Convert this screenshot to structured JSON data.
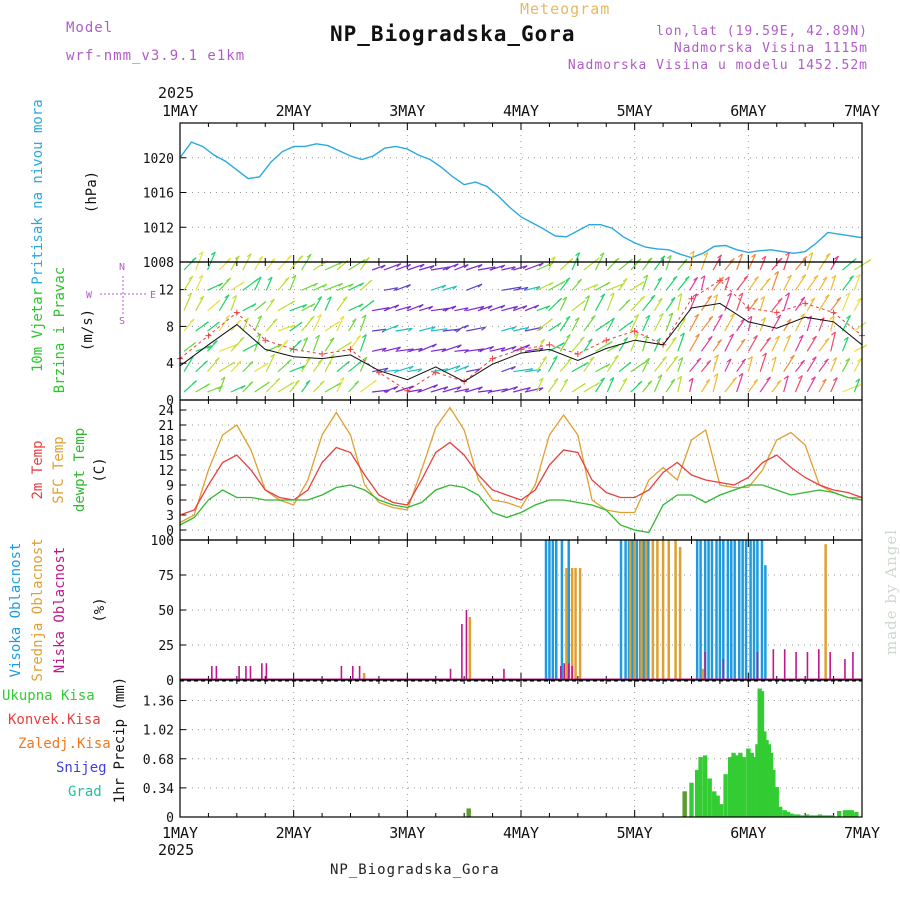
{
  "header": {
    "model_label": "Model",
    "model_name": "wrf-nmm_v3.9.1 e1km",
    "title": "NP_Biogradska_Gora",
    "subtitle": "Meteogram",
    "coords": "lon,lat (19.59E, 42.89N)",
    "elevation": "Nadmorska Visina 1115m",
    "model_elevation": "Nadmorska Visina u modelu 1452.52m",
    "footer": "NP_Biogradska_Gora",
    "signature": "made by Angel"
  },
  "colors": {
    "pressure": "#29a9e0",
    "wind_title": "#2cc52c",
    "temp2m": "#e84040",
    "sfc": "#e0a030",
    "dewpt": "#30b830",
    "cloud_high": "#1e9be0",
    "cloud_mid": "#e0a030",
    "cloud_low": "#c0188c",
    "precip_total": "#33cc33",
    "precip_conv": "#e84040",
    "precip_frz": "#f07820",
    "precip_snow": "#4040e0",
    "precip_hail": "#20c0a0"
  },
  "chart_data": [
    {
      "type": "line",
      "panel": "pressure",
      "ylabel": "Pritisak na nivou mora",
      "unit": "(hPa)",
      "ylim": [
        1008,
        1024
      ],
      "yticks": [
        1008,
        1012,
        1016,
        1020
      ],
      "grid": true,
      "year": "2025",
      "day_labels": [
        "1MAY",
        "2MAY",
        "3MAY",
        "4MAY",
        "5MAY",
        "6MAY",
        "7MAY"
      ],
      "x": [
        0,
        0.1,
        0.2,
        0.3,
        0.4,
        0.5,
        0.6,
        0.7,
        0.8,
        0.9,
        1.0,
        1.1,
        1.2,
        1.3,
        1.4,
        1.5,
        1.6,
        1.7,
        1.8,
        1.9,
        2.0,
        2.1,
        2.2,
        2.3,
        2.4,
        2.5,
        2.6,
        2.7,
        2.8,
        2.9,
        3.0,
        3.1,
        3.2,
        3.3,
        3.4,
        3.5,
        3.6,
        3.7,
        3.8,
        3.9,
        4.0,
        4.1,
        4.2,
        4.3,
        4.4,
        4.5,
        4.6,
        4.7,
        4.8,
        4.9,
        5.0,
        5.1,
        5.2,
        5.3,
        5.4,
        5.5,
        5.6,
        5.7,
        5.8,
        5.9,
        6.0
      ],
      "series": [
        {
          "values": [
            1020.0,
            1021.8,
            1021.3,
            1020.3,
            1019.6,
            1018.6,
            1017.6,
            1017.8,
            1019.5,
            1020.7,
            1021.3,
            1021.3,
            1021.6,
            1021.4,
            1020.8,
            1020.2,
            1019.8,
            1020.2,
            1021.1,
            1021.3,
            1021.0,
            1020.3,
            1019.8,
            1018.9,
            1017.8,
            1016.9,
            1017.2,
            1016.7,
            1015.6,
            1014.3,
            1013.2,
            1012.5,
            1011.8,
            1011.0,
            1010.9,
            1011.6,
            1012.3,
            1012.3,
            1011.9,
            1010.9,
            1010.2,
            1009.7,
            1009.5,
            1009.4,
            1008.9,
            1008.5,
            1009.0,
            1009.8,
            1009.9,
            1009.4,
            1009.1,
            1009.3,
            1009.4,
            1009.2,
            1009.0,
            1009.2,
            1010.2,
            1011.4,
            1011.2,
            1011.0,
            1010.8
          ]
        }
      ]
    },
    {
      "type": "line",
      "panel": "wind",
      "ylabel": "10m Vjetar",
      "ylabel2": "Brzina i Pravac",
      "unit": "(m/s)",
      "compass": {
        "w": "W",
        "e": "E",
        "n": "N",
        "s": "S"
      },
      "ylim": [
        0,
        15
      ],
      "yticks": [
        0,
        4,
        8,
        12
      ],
      "grid": true,
      "x": [
        0,
        0.25,
        0.5,
        0.75,
        1.0,
        1.25,
        1.5,
        1.75,
        2.0,
        2.25,
        2.5,
        2.75,
        3.0,
        3.25,
        3.5,
        3.75,
        4.0,
        4.25,
        4.5,
        4.75,
        5.0,
        5.25,
        5.5,
        5.75,
        6.0
      ],
      "series": [
        {
          "values": [
            3.7,
            6.0,
            8.2,
            5.5,
            4.7,
            4.5,
            4.9,
            3.2,
            2.2,
            3.6,
            2.0,
            3.9,
            5.1,
            5.5,
            4.3,
            5.6,
            6.5,
            6.0,
            10.0,
            10.5,
            8.5,
            7.8,
            9.0,
            8.5,
            6.0
          ]
        },
        {
          "values": [
            4.5,
            7.0,
            9.5,
            6.5,
            5.5,
            5.0,
            5.5,
            3.0,
            1.0,
            3.0,
            2.0,
            4.5,
            5.5,
            6.0,
            5.0,
            6.5,
            7.5,
            6.0,
            11.0,
            13.0,
            10.0,
            9.5,
            10.5,
            9.5,
            7.0
          ]
        }
      ]
    },
    {
      "type": "line",
      "panel": "temperature",
      "ylabel": "2m Temp",
      "ylabel2": "SFC Temp",
      "ylabel3": "dewpt Temp",
      "unit": "(C)",
      "ylim": [
        -2,
        26
      ],
      "yticks": [
        0,
        3,
        6,
        9,
        12,
        15,
        18,
        21,
        24
      ],
      "grid": true,
      "x": [
        0,
        0.125,
        0.25,
        0.375,
        0.5,
        0.625,
        0.75,
        0.875,
        1.0,
        1.125,
        1.25,
        1.375,
        1.5,
        1.625,
        1.75,
        1.875,
        2.0,
        2.125,
        2.25,
        2.375,
        2.5,
        2.625,
        2.75,
        2.875,
        3.0,
        3.125,
        3.25,
        3.375,
        3.5,
        3.625,
        3.75,
        3.875,
        4.0,
        4.125,
        4.25,
        4.375,
        4.5,
        4.625,
        4.75,
        4.875,
        5.0,
        5.125,
        5.25,
        5.375,
        5.5,
        5.625,
        5.75,
        5.875,
        6.0
      ],
      "series": [
        {
          "values": [
            3.0,
            4.0,
            9.0,
            13.5,
            15.0,
            12.0,
            8.0,
            6.5,
            6.0,
            8.0,
            13.5,
            16.5,
            15.5,
            11.0,
            7.0,
            5.5,
            5.0,
            10.0,
            15.5,
            17.5,
            15.0,
            11.0,
            8.0,
            7.0,
            6.0,
            8.0,
            13.0,
            16.0,
            15.5,
            10.0,
            7.5,
            6.5,
            6.5,
            8.0,
            11.5,
            13.5,
            11.0,
            10.0,
            9.5,
            9.0,
            10.5,
            13.5,
            15.0,
            12.5,
            10.5,
            9.0,
            8.0,
            7.5,
            6.5
          ]
        },
        {
          "values": [
            1.5,
            3.0,
            12.0,
            19.0,
            21.0,
            16.0,
            8.0,
            6.0,
            5.0,
            10.0,
            19.0,
            23.5,
            19.0,
            9.0,
            5.5,
            4.5,
            4.0,
            12.0,
            20.5,
            24.5,
            20.0,
            10.0,
            6.0,
            5.5,
            4.5,
            9.0,
            19.0,
            23.0,
            19.0,
            6.0,
            4.0,
            3.5,
            3.5,
            10.0,
            12.5,
            10.0,
            18.0,
            20.0,
            9.0,
            8.5,
            8.5,
            12.0,
            18.0,
            19.5,
            17.0,
            9.0,
            7.5,
            6.5,
            6.5
          ]
        },
        {
          "values": [
            1.0,
            2.5,
            6.0,
            8.0,
            6.5,
            6.5,
            6.0,
            6.0,
            6.0,
            6.0,
            7.0,
            8.5,
            9.0,
            8.0,
            6.0,
            5.0,
            4.5,
            5.5,
            8.0,
            9.0,
            8.5,
            7.0,
            3.5,
            2.5,
            3.5,
            5.0,
            6.0,
            6.0,
            5.5,
            5.0,
            4.0,
            1.0,
            0.0,
            -0.5,
            5.0,
            7.0,
            7.0,
            5.5,
            7.0,
            8.0,
            9.0,
            9.0,
            8.0,
            7.0,
            7.5,
            8.0,
            7.5,
            6.5,
            6.0
          ]
        }
      ]
    },
    {
      "type": "bar",
      "panel": "clouds",
      "ylabel": "Visoka Oblacnost",
      "ylabel2": "Srednja Oblacnost",
      "ylabel3": "Niska Oblacnost",
      "unit": "(%)",
      "ylim": [
        0,
        100
      ],
      "yticks": [
        0,
        25,
        50,
        75,
        100
      ],
      "grid": true,
      "series": [
        {
          "x": [
            3.22,
            3.25,
            3.28,
            3.31,
            3.36,
            3.42,
            3.88,
            3.92,
            3.95,
            3.98,
            4.02,
            4.05,
            4.08,
            4.12,
            4.55,
            4.58,
            4.62,
            4.65,
            4.68,
            4.72,
            4.75,
            4.78,
            4.82,
            4.85,
            4.88,
            4.92,
            4.95,
            4.98,
            5.02,
            5.05,
            5.08,
            5.12,
            5.15
          ],
          "values": [
            100,
            100,
            100,
            100,
            100,
            100,
            100,
            100,
            100,
            100,
            100,
            100,
            100,
            100,
            100,
            100,
            100,
            100,
            100,
            100,
            100,
            100,
            100,
            100,
            100,
            100,
            100,
            100,
            100,
            100,
            100,
            100,
            82
          ]
        },
        {
          "x": [
            1.62,
            2.55,
            3.4,
            3.45,
            3.48,
            3.52,
            3.96,
            4.0,
            4.06,
            4.1,
            4.16,
            4.2,
            4.25,
            4.3,
            4.36,
            4.4,
            4.6,
            5.68
          ],
          "values": [
            5,
            45,
            80,
            80,
            80,
            80,
            100,
            100,
            100,
            100,
            100,
            100,
            100,
            100,
            100,
            95,
            8,
            97
          ]
        },
        {
          "x": [
            0.28,
            0.32,
            0.52,
            0.58,
            0.62,
            0.72,
            0.76,
            1.42,
            1.52,
            1.58,
            2.38,
            2.48,
            2.52,
            2.85,
            3.35,
            3.38,
            3.42,
            3.45,
            4.62,
            4.78,
            5.08,
            5.22,
            5.32,
            5.42,
            5.52,
            5.62,
            5.72,
            5.85,
            5.92
          ],
          "values": [
            10,
            10,
            10,
            10,
            10,
            12,
            12,
            10,
            10,
            10,
            8,
            40,
            50,
            8,
            10,
            12,
            12,
            10,
            20,
            15,
            20,
            22,
            22,
            20,
            20,
            22,
            20,
            15,
            20
          ]
        }
      ]
    },
    {
      "type": "bar",
      "panel": "precipitation",
      "legend": [
        "Ukupna Kisa",
        "Konvek.Kisa",
        "Zaledj.Kisa",
        "Snijeg",
        "Grad"
      ],
      "ylabel": "1hr Precip",
      "unit": "(mm)",
      "ylim": [
        0,
        1.6
      ],
      "yticks": [
        0,
        0.34,
        0.68,
        1.02,
        1.36
      ],
      "grid": true,
      "series": [
        {
          "x": [
            2.54,
            4.44,
            4.5,
            4.55,
            4.58,
            4.62,
            4.66,
            4.7,
            4.73,
            4.76,
            4.8,
            4.84,
            4.87,
            4.9,
            4.93,
            4.96,
            5.0,
            5.03,
            5.06,
            5.08,
            5.1,
            5.12,
            5.14,
            5.16,
            5.18,
            5.2,
            5.22,
            5.25,
            5.28,
            5.32,
            5.35,
            5.38,
            5.41,
            5.44,
            5.48,
            5.52,
            5.56,
            5.6,
            5.63,
            5.66,
            5.7,
            5.74,
            5.8,
            5.85,
            5.88,
            5.91,
            5.95
          ],
          "values": [
            0.1,
            0.3,
            0.4,
            0.55,
            0.7,
            0.72,
            0.45,
            0.3,
            0.25,
            0.15,
            0.5,
            0.7,
            0.75,
            0.72,
            0.75,
            0.7,
            0.8,
            0.75,
            0.7,
            0.85,
            1.5,
            1.47,
            1.0,
            0.9,
            0.85,
            0.75,
            0.55,
            0.35,
            0.12,
            0.08,
            0.06,
            0.04,
            0.03,
            0.03,
            0.02,
            0.03,
            0.02,
            0.02,
            0.03,
            0.02,
            0.02,
            0.02,
            0.07,
            0.08,
            0.08,
            0.08,
            0.06
          ]
        }
      ]
    }
  ]
}
